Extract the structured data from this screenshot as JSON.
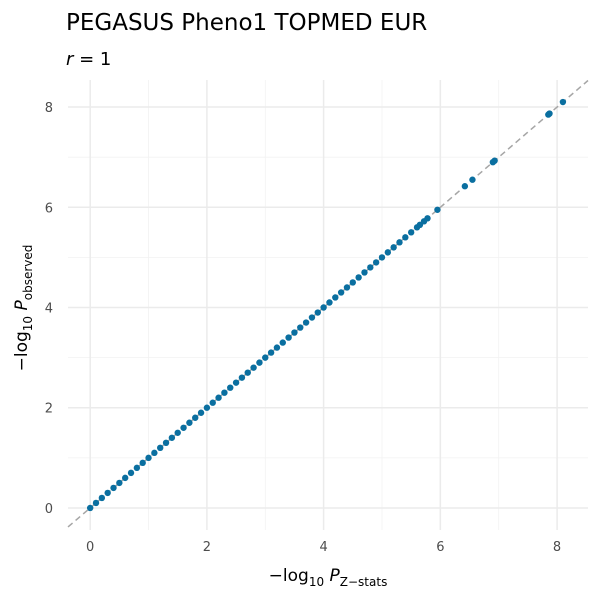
{
  "chart_data": {
    "type": "scatter",
    "title": "PEGASUS Pheno1 TOPMED EUR",
    "subtitle": {
      "symbol": "r",
      "text": " = 1"
    },
    "x_label": {
      "prefix": "−log",
      "base": "10",
      "symbol": " P",
      "sub": "Z−stats"
    },
    "y_label": {
      "prefix": "−log",
      "base": "10",
      "symbol": " P",
      "sub": "observed"
    },
    "x": [
      0,
      0.1,
      0.2,
      0.3,
      0.4,
      0.5,
      0.6,
      0.7,
      0.8,
      0.9,
      1,
      1.1,
      1.2,
      1.3,
      1.4,
      1.5,
      1.6,
      1.7,
      1.8,
      1.9,
      2,
      2.1,
      2.2,
      2.3,
      2.4,
      2.5,
      2.6,
      2.7,
      2.8,
      2.9,
      3,
      3.1,
      3.2,
      3.3,
      3.4,
      3.5,
      3.6,
      3.7,
      3.8,
      3.9,
      4,
      4.1,
      4.2,
      4.3,
      4.4,
      4.5,
      4.6,
      4.7,
      4.8,
      4.9,
      5,
      5.1,
      5.2,
      5.3,
      5.4,
      5.5,
      5.6,
      5.65,
      5.72,
      5.78,
      5.95,
      6.42,
      6.55,
      6.9,
      6.93,
      7.85,
      7.87,
      8.1
    ],
    "values": [
      0,
      0.1,
      0.2,
      0.3,
      0.4,
      0.5,
      0.6,
      0.7,
      0.8,
      0.9,
      1,
      1.1,
      1.2,
      1.3,
      1.4,
      1.5,
      1.6,
      1.7,
      1.8,
      1.9,
      2,
      2.1,
      2.2,
      2.3,
      2.4,
      2.5,
      2.6,
      2.7,
      2.8,
      2.9,
      3,
      3.1,
      3.2,
      3.3,
      3.4,
      3.5,
      3.6,
      3.7,
      3.8,
      3.9,
      4,
      4.1,
      4.2,
      4.3,
      4.4,
      4.5,
      4.6,
      4.7,
      4.8,
      4.9,
      5,
      5.1,
      5.2,
      5.3,
      5.4,
      5.5,
      5.6,
      5.65,
      5.72,
      5.78,
      5.95,
      6.42,
      6.55,
      6.9,
      6.93,
      7.85,
      7.87,
      8.1
    ],
    "color": "#0a6fa0",
    "identity_line": true,
    "identity_color": "#a6a6a6",
    "xlim": [
      -0.38,
      8.53
    ],
    "ylim": [
      -0.44,
      8.54
    ],
    "xticks": [
      0,
      2,
      4,
      6,
      8
    ],
    "yticks": [
      0,
      2,
      4,
      6,
      8
    ],
    "xminor": [
      1,
      3,
      5,
      7
    ],
    "yminor": [
      1,
      3,
      5,
      7
    ],
    "grid": true
  }
}
